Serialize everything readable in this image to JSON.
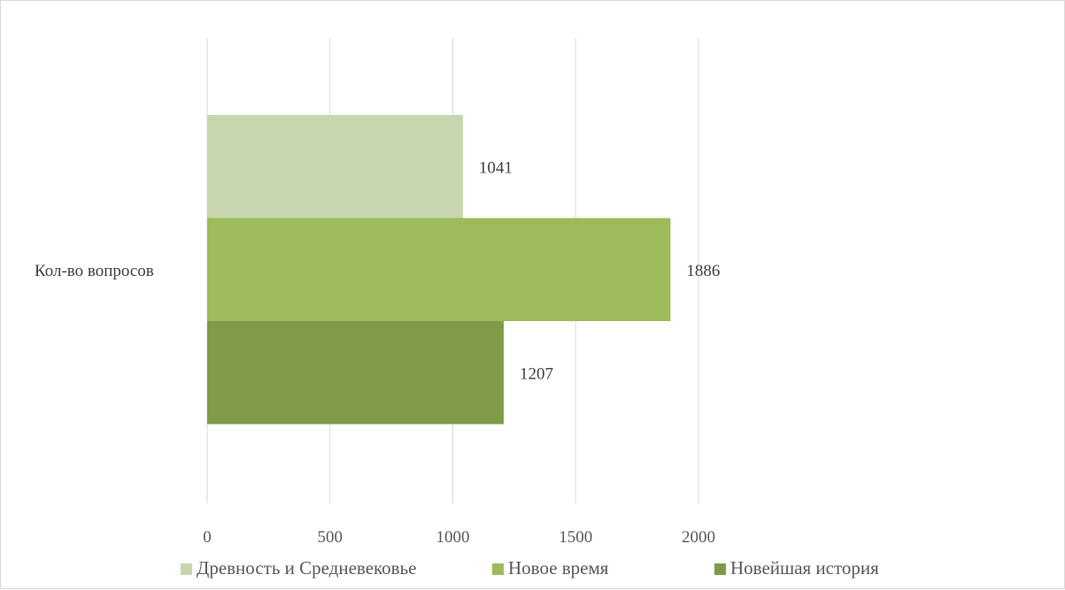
{
  "chart_data": {
    "type": "bar",
    "orientation": "horizontal",
    "categories": [
      "Кол-во вопросов"
    ],
    "series": [
      {
        "name": "Древность и Средневековье",
        "values": [
          1041
        ],
        "color": "#c6d6ae"
      },
      {
        "name": "Новое время",
        "values": [
          1886
        ],
        "color": "#9dbb5a"
      },
      {
        "name": "Новейшая история",
        "values": [
          1207
        ],
        "color": "#7f9b48"
      }
    ],
    "x_ticks": [
      0,
      500,
      1000,
      1500,
      2000
    ],
    "xlim": [
      0,
      2000
    ],
    "grid": "vertical",
    "legend_position": "bottom",
    "data_labels": true,
    "title": "",
    "xlabel": "",
    "ylabel": ""
  }
}
